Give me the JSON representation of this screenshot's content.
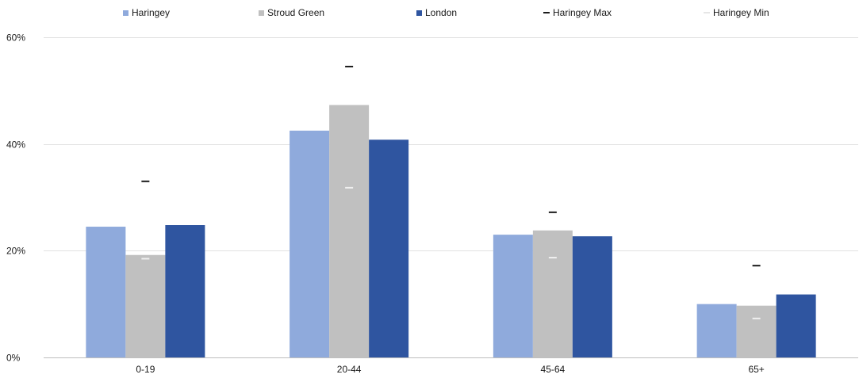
{
  "chart_data": {
    "type": "bar",
    "title": "",
    "xlabel": "",
    "ylabel": "",
    "categories": [
      "0-19",
      "20-44",
      "45-64",
      "65+"
    ],
    "ylim": [
      0,
      60
    ],
    "yticks": [
      0,
      20,
      40,
      60
    ],
    "ytick_labels": [
      "0%",
      "20%",
      "40%",
      "60%"
    ],
    "grid": true,
    "legend_position": "top",
    "series": [
      {
        "name": "Haringey",
        "color": "#8faadc",
        "values": [
          24.5,
          42.5,
          23.0,
          10.0
        ]
      },
      {
        "name": "Stroud Green",
        "color": "#c0c0c0",
        "values": [
          19.2,
          47.3,
          23.8,
          9.7
        ]
      },
      {
        "name": "London",
        "color": "#2f55a0",
        "values": [
          24.8,
          40.8,
          22.7,
          11.8
        ]
      }
    ],
    "markers": [
      {
        "name": "Haringey Max",
        "color": "#1a1a1a",
        "values": [
          33.0,
          54.5,
          27.2,
          17.2
        ]
      },
      {
        "name": "Haringey Min",
        "color": "#f0f0f0",
        "values": [
          18.5,
          31.8,
          18.7,
          7.3
        ]
      }
    ]
  }
}
